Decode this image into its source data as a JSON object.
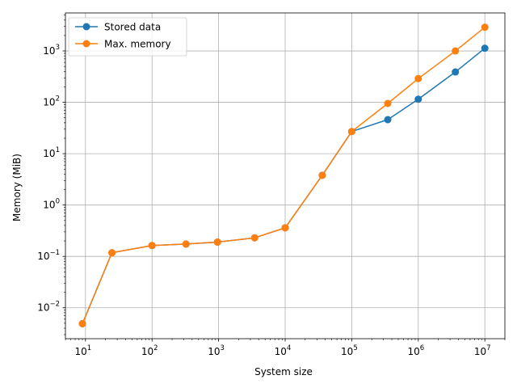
{
  "chart_data": {
    "type": "line",
    "title": "",
    "xlabel": "System size",
    "ylabel": "Memory (MiB)",
    "xscale": "log",
    "yscale": "log",
    "xlim": [
      5,
      20000000
    ],
    "ylim": [
      0.0025,
      5500
    ],
    "grid": true,
    "legend_location": "upper left",
    "x_tick_labels": [
      {
        "base": "10",
        "exp": "1",
        "value": 10
      },
      {
        "base": "10",
        "exp": "2",
        "value": 100
      },
      {
        "base": "10",
        "exp": "3",
        "value": 1000
      },
      {
        "base": "10",
        "exp": "4",
        "value": 10000
      },
      {
        "base": "10",
        "exp": "5",
        "value": 100000
      },
      {
        "base": "10",
        "exp": "6",
        "value": 1000000
      },
      {
        "base": "10",
        "exp": "7",
        "value": 10000000
      }
    ],
    "y_tick_labels": [
      {
        "base": "10",
        "exp": "−2",
        "value": 0.01
      },
      {
        "base": "10",
        "exp": "−1",
        "value": 0.1
      },
      {
        "base": "10",
        "exp": "0",
        "value": 1
      },
      {
        "base": "10",
        "exp": "1",
        "value": 10
      },
      {
        "base": "10",
        "exp": "2",
        "value": 100
      },
      {
        "base": "10",
        "exp": "3",
        "value": 1000
      }
    ],
    "series": [
      {
        "name": "Stored data",
        "color": "#1f77b4",
        "x": [
          9,
          25,
          100,
          324,
          961,
          3481,
          10000,
          36100,
          100000,
          348100,
          1000000,
          3610000,
          10000000
        ],
        "y": [
          0.0049,
          0.118,
          0.163,
          0.174,
          0.19,
          0.23,
          0.36,
          3.8,
          27,
          46,
          115,
          390,
          1130
        ]
      },
      {
        "name": "Max. memory",
        "color": "#ff7f0e",
        "x": [
          9,
          25,
          100,
          324,
          961,
          3481,
          10000,
          36100,
          100000,
          348100,
          1000000,
          3610000,
          10000000
        ],
        "y": [
          0.0049,
          0.118,
          0.163,
          0.174,
          0.19,
          0.23,
          0.36,
          3.8,
          27,
          95,
          290,
          1000,
          2900
        ]
      }
    ]
  }
}
